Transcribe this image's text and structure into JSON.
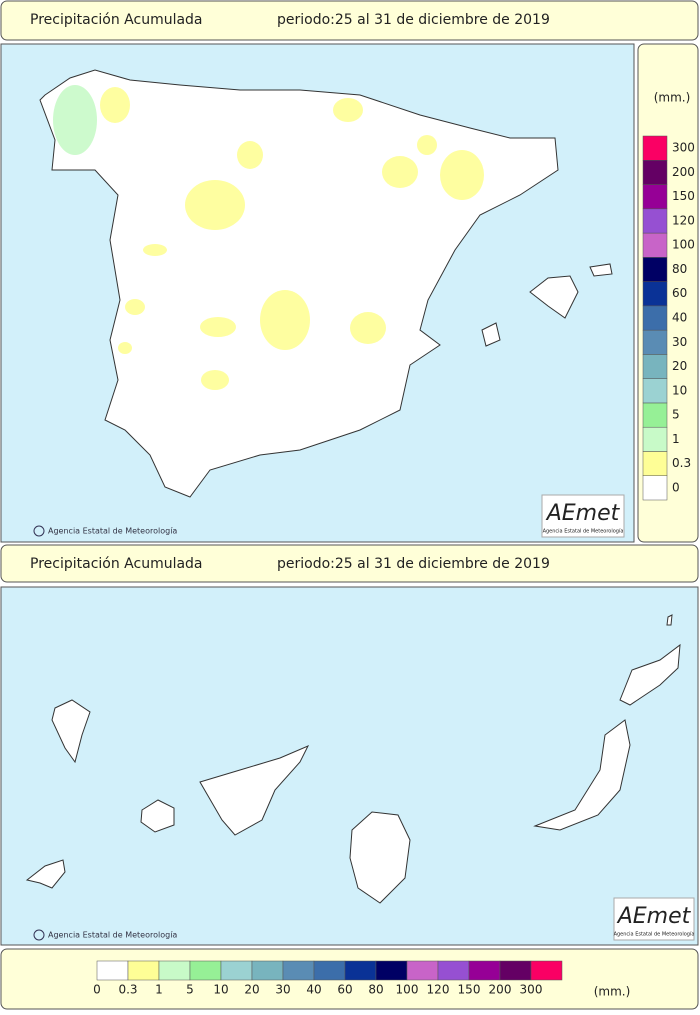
{
  "peninsula": {
    "title": "Precipitación Acumulada",
    "period": "periodo:25 al 31 de diciembre de 2019",
    "credit": "Agencia Estatal de Meteorología",
    "logo": "AEmet",
    "logo_sub": "Agencia Estatal de Meteorología"
  },
  "canarias": {
    "title": "Precipitación Acumulada",
    "period": "periodo:25 al 31 de diciembre de 2019",
    "credit": "Agencia Estatal de Meteorología",
    "logo": "AEmet",
    "logo_sub": "Agencia Estatal de Meteorología"
  },
  "legend": {
    "unit": "(mm.)",
    "classes": [
      {
        "value": 0,
        "color": "#ffffff"
      },
      {
        "value": 0.3,
        "color": "#fefe96"
      },
      {
        "value": 1,
        "color": "#c8fac8"
      },
      {
        "value": 5,
        "color": "#96f096"
      },
      {
        "value": 10,
        "color": "#9bd2d2"
      },
      {
        "value": 20,
        "color": "#78b4be"
      },
      {
        "value": 30,
        "color": "#5a8cb4"
      },
      {
        "value": 40,
        "color": "#3c6eaa"
      },
      {
        "value": 60,
        "color": "#0a3296"
      },
      {
        "value": 80,
        "color": "#000064"
      },
      {
        "value": 100,
        "color": "#c864c8"
      },
      {
        "value": 120,
        "color": "#9650d2"
      },
      {
        "value": 150,
        "color": "#960096"
      },
      {
        "value": 200,
        "color": "#640064"
      },
      {
        "value": 300,
        "color": "#fa0064"
      }
    ]
  }
}
